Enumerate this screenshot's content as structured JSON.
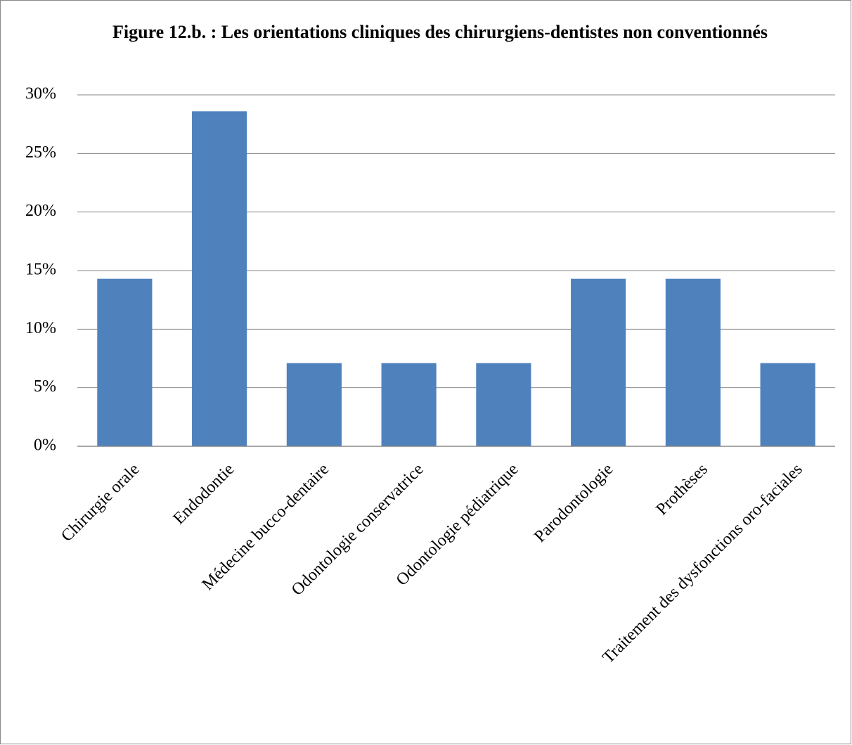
{
  "chart_data": {
    "type": "bar",
    "title": "Figure 12.b. : Les orientations cliniques des chirurgiens-dentistes non conventionnés",
    "categories": [
      "Chirurgie orale",
      "Endodontie",
      "Médecine bucco-dentaire",
      "Odontologie conservatrice",
      "Odontologie pédiatrique",
      "Parodontologie",
      "Prothèses",
      "Traitement des dysfonctions oro-faciales"
    ],
    "values": [
      14.3,
      28.6,
      7.1,
      7.1,
      7.1,
      14.3,
      14.3,
      7.1
    ],
    "color": "#4f81bd",
    "ylim": [
      0,
      30
    ],
    "yticks": [
      {
        "value": 0,
        "label": "0%"
      },
      {
        "value": 5,
        "label": "5%"
      },
      {
        "value": 10,
        "label": "10%"
      },
      {
        "value": 15,
        "label": "15%"
      },
      {
        "value": 20,
        "label": "20%"
      },
      {
        "value": 25,
        "label": "25%"
      },
      {
        "value": 30,
        "label": "30%"
      }
    ],
    "grid": true
  }
}
